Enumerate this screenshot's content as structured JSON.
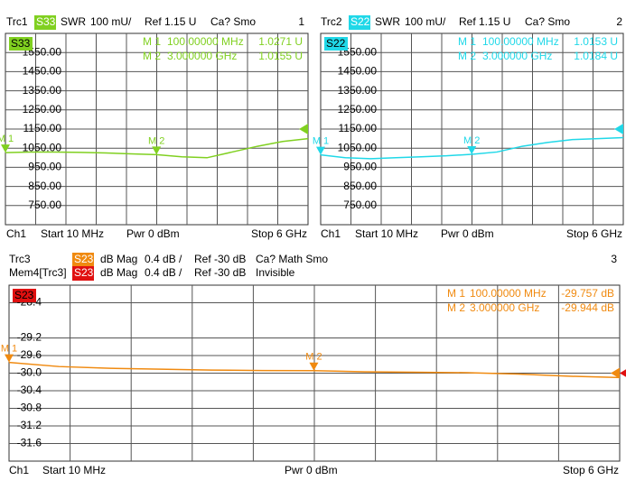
{
  "chart_data": [
    {
      "type": "line",
      "traces": [
        {
          "trace": "Trc1",
          "param": "S33",
          "color": "#80d020",
          "format": "SWR",
          "scale": "100 mU/",
          "ref": "Ref 1.15 U",
          "status": "Ca? Smo"
        }
      ],
      "number": "1",
      "markers": [
        {
          "label": "M 1",
          "freq": "100.00000 MHz",
          "value": "1.0271 U"
        },
        {
          "label": "M 2",
          "freq": "3.000000 GHz",
          "value": "1.0155 U"
        }
      ],
      "footer": {
        "channel": "Ch1",
        "start": "Start 10 MHz",
        "power": "Pwr 0 dBm",
        "stop": "Stop 6 GHz"
      },
      "x": [
        0.01,
        0.5,
        1,
        1.5,
        2,
        2.5,
        3,
        3.5,
        4,
        4.5,
        5,
        5.5,
        6
      ],
      "series": [
        {
          "color": "#80d020",
          "values": [
            1027,
            1030,
            1030,
            1028,
            1025,
            1020,
            1016,
            1005,
            1000,
            1030,
            1060,
            1085,
            1100
          ]
        }
      ],
      "xlim": [
        0.01,
        6
      ],
      "ylim": [
        650,
        1650
      ],
      "ref_level": 1150,
      "yticks": [
        {
          "value": 1550,
          "label": "1550.00"
        },
        {
          "value": 1450,
          "label": "1450.00"
        },
        {
          "value": 1350,
          "label": "1350.00"
        },
        {
          "value": 1250,
          "label": "1250.00"
        },
        {
          "value": 1150,
          "label": "1150.00"
        },
        {
          "value": 1050,
          "label": "1050.00"
        },
        {
          "value": 950,
          "label": "950.00"
        },
        {
          "value": 850,
          "label": "850.00"
        },
        {
          "value": 750,
          "label": "750.00"
        }
      ]
    },
    {
      "type": "line",
      "traces": [
        {
          "trace": "Trc2",
          "param": "S22",
          "color": "#20d8e8",
          "format": "SWR",
          "scale": "100 mU/",
          "ref": "Ref 1.15 U",
          "status": "Ca? Smo"
        }
      ],
      "number": "2",
      "markers": [
        {
          "label": "M 1",
          "freq": "100.00000 MHz",
          "value": "1.0153 U"
        },
        {
          "label": "M 2",
          "freq": "3.000000 GHz",
          "value": "1.0184 U"
        }
      ],
      "footer": {
        "channel": "Ch1",
        "start": "Start 10 MHz",
        "power": "Pwr 0 dBm",
        "stop": "Stop 6 GHz"
      },
      "x": [
        0.01,
        0.5,
        1,
        1.5,
        2,
        2.5,
        3,
        3.5,
        4,
        4.5,
        5,
        5.5,
        6
      ],
      "series": [
        {
          "color": "#20d8e8",
          "values": [
            1015,
            1000,
            995,
            1000,
            1005,
            1010,
            1018,
            1030,
            1060,
            1080,
            1095,
            1100,
            1105
          ]
        }
      ],
      "xlim": [
        0.01,
        6
      ],
      "ylim": [
        650,
        1650
      ],
      "ref_level": 1150,
      "yticks": [
        {
          "value": 1550,
          "label": "1550.00"
        },
        {
          "value": 1450,
          "label": "1450.00"
        },
        {
          "value": 1350,
          "label": "1350.00"
        },
        {
          "value": 1250,
          "label": "1250.00"
        },
        {
          "value": 1150,
          "label": "1150.00"
        },
        {
          "value": 1050,
          "label": "1050.00"
        },
        {
          "value": 950,
          "label": "950.00"
        },
        {
          "value": 850,
          "label": "850.00"
        },
        {
          "value": 750,
          "label": "750.00"
        }
      ]
    },
    {
      "type": "line",
      "traces": [
        {
          "trace": "Trc3",
          "param": "S23",
          "color": "#f08a10",
          "format": "dB Mag",
          "scale": "0.4 dB /",
          "ref": "Ref -30 dB",
          "status": "Ca? Math Smo"
        },
        {
          "trace": "Mem4[Trc3]",
          "param": "S23",
          "color": "#e01010",
          "format": "dB Mag",
          "scale": "0.4 dB /",
          "ref": "Ref -30 dB",
          "status": "Invisible"
        }
      ],
      "number": "3",
      "markers": [
        {
          "label": "M 1",
          "freq": "100.00000 MHz",
          "value": "-29.757 dB"
        },
        {
          "label": "M 2",
          "freq": "3.000000 GHz",
          "value": "-29.944 dB"
        }
      ],
      "footer": {
        "channel": "Ch1",
        "start": "Start 10 MHz",
        "power": "Pwr 0 dBm",
        "stop": "Stop 6 GHz"
      },
      "x": [
        0.01,
        0.5,
        1,
        1.5,
        2,
        2.5,
        3,
        3.5,
        4,
        4.5,
        5,
        5.5,
        6
      ],
      "series": [
        {
          "color": "#f08a10",
          "values": [
            -29.757,
            -29.85,
            -29.89,
            -29.91,
            -29.93,
            -29.94,
            -29.944,
            -29.97,
            -29.98,
            -29.99,
            -30.02,
            -30.07,
            -30.1
          ]
        }
      ],
      "xlim": [
        0.01,
        6
      ],
      "ylim": [
        -32,
        -28
      ],
      "ref_level": -30,
      "yticks": [
        -28.4,
        -29.2,
        -29.6,
        {
          "value": -30,
          "label": "-30.0"
        },
        -30.4,
        -30.8,
        -31.2,
        -31.6
      ]
    }
  ]
}
